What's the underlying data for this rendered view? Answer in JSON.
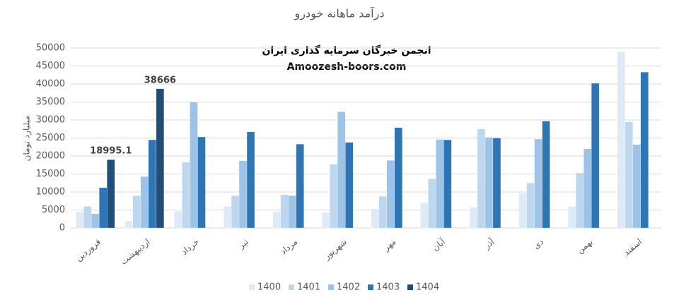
{
  "chart_data": {
    "type": "bar",
    "title": "درآمد ماهانه خودرو",
    "annotations": [
      "انجمن خبرگان سرمایه گذاری ایران",
      "Amoozesh-boors.com"
    ],
    "y_label": "میلیارد تومان",
    "categories": [
      "فروردین",
      "اردیبهشت",
      "خرداد",
      "تیر",
      "مرداد",
      "شهریور",
      "مهر",
      "آبان",
      "آذر",
      "دی",
      "بهمن",
      "اسفند"
    ],
    "series": [
      {
        "name": "1400",
        "color": "#deebf7",
        "values": [
          4500,
          2000,
          4700,
          6000,
          4500,
          4300,
          5300,
          7000,
          5800,
          9700,
          6000,
          49000
        ]
      },
      {
        "name": "1401",
        "color": "#bdd7ee",
        "values": [
          6000,
          9000,
          18300,
          9000,
          9300,
          17700,
          8800,
          13700,
          27500,
          12500,
          15300,
          29500
        ]
      },
      {
        "name": "1402",
        "color": "#9dc3e6",
        "values": [
          4000,
          14300,
          35000,
          18700,
          9000,
          32300,
          18800,
          24600,
          25200,
          24700,
          22000,
          23200
        ]
      },
      {
        "name": "1403",
        "color": "#2e75b6",
        "values": [
          11200,
          24500,
          25300,
          26700,
          23300,
          23800,
          27900,
          24500,
          25000,
          29700,
          40200,
          43300
        ]
      },
      {
        "name": "1404",
        "color": "#1f4e79",
        "labeled": true,
        "values": [
          18995.1,
          38666,
          null,
          null,
          null,
          null,
          null,
          null,
          null,
          null,
          null,
          null
        ]
      }
    ],
    "ylim": [
      0,
      50000
    ],
    "yticks": [
      0,
      5000,
      10000,
      15000,
      20000,
      25000,
      30000,
      35000,
      40000,
      45000,
      50000
    ],
    "grid": true,
    "legend": "bottom"
  }
}
